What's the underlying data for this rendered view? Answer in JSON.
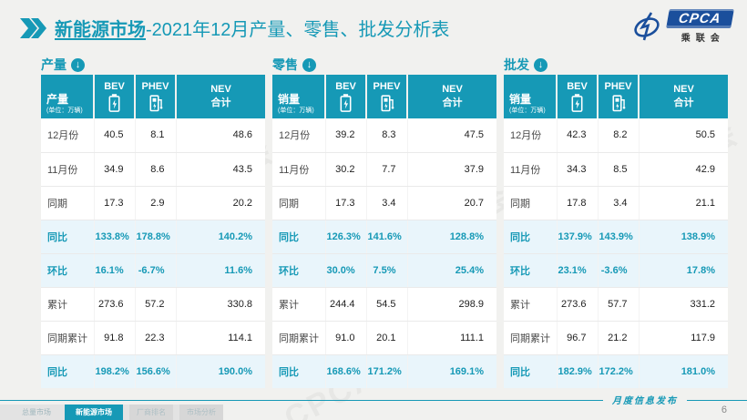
{
  "accent": "#1699B6",
  "page_background": "#F1F1EF",
  "highlight_row_background": "#E9F5FB",
  "title": {
    "highlight": "新能源市场",
    "rest": "-2021年12月产量、零售、批发分析表"
  },
  "logo": {
    "cpca": "CPCA",
    "org": "乘联会",
    "swoosh_color": "#1B4F9C"
  },
  "unit_note": "(单位：万辆)",
  "columns": {
    "bev": "BEV",
    "phev": "PHEV",
    "nev_line1": "NEV",
    "nev_line2": "合计"
  },
  "sections": [
    {
      "title": "产量",
      "arrow": false,
      "label_header": "产量",
      "rows": [
        {
          "label": "12月份",
          "values": [
            "40.5",
            "8.1",
            "48.6"
          ],
          "highlight": false
        },
        {
          "label": "11月份",
          "values": [
            "34.9",
            "8.6",
            "43.5"
          ],
          "highlight": false
        },
        {
          "label": "同期",
          "values": [
            "17.3",
            "2.9",
            "20.2"
          ],
          "highlight": false
        },
        {
          "label": "同比",
          "values": [
            "133.8%",
            "178.8%",
            "140.2%"
          ],
          "highlight": true
        },
        {
          "label": "环比",
          "values": [
            "16.1%",
            "-6.7%",
            "11.6%"
          ],
          "highlight": true
        },
        {
          "label": "累计",
          "values": [
            "273.6",
            "57.2",
            "330.8"
          ],
          "highlight": false
        },
        {
          "label": "同期累计",
          "values": [
            "91.8",
            "22.3",
            "114.1"
          ],
          "highlight": false
        },
        {
          "label": "同比",
          "values": [
            "198.2%",
            "156.6%",
            "190.0%"
          ],
          "highlight": true
        }
      ]
    },
    {
      "title": "零售",
      "arrow": true,
      "label_header": "销量",
      "rows": [
        {
          "label": "12月份",
          "values": [
            "39.2",
            "8.3",
            "47.5"
          ],
          "highlight": false
        },
        {
          "label": "11月份",
          "values": [
            "30.2",
            "7.7",
            "37.9"
          ],
          "highlight": false
        },
        {
          "label": "同期",
          "values": [
            "17.3",
            "3.4",
            "20.7"
          ],
          "highlight": false
        },
        {
          "label": "同比",
          "values": [
            "126.3%",
            "141.6%",
            "128.8%"
          ],
          "highlight": true
        },
        {
          "label": "环比",
          "values": [
            "30.0%",
            "7.5%",
            "25.4%"
          ],
          "highlight": true
        },
        {
          "label": "累计",
          "values": [
            "244.4",
            "54.5",
            "298.9"
          ],
          "highlight": false
        },
        {
          "label": "同期累计",
          "values": [
            "91.0",
            "20.1",
            "111.1"
          ],
          "highlight": false
        },
        {
          "label": "同比",
          "values": [
            "168.6%",
            "171.2%",
            "169.1%"
          ],
          "highlight": true
        }
      ]
    },
    {
      "title": "批发",
      "arrow": true,
      "label_header": "销量",
      "rows": [
        {
          "label": "12月份",
          "values": [
            "42.3",
            "8.2",
            "50.5"
          ],
          "highlight": false
        },
        {
          "label": "11月份",
          "values": [
            "34.3",
            "8.5",
            "42.9"
          ],
          "highlight": false
        },
        {
          "label": "同期",
          "values": [
            "17.8",
            "3.4",
            "21.1"
          ],
          "highlight": false
        },
        {
          "label": "同比",
          "values": [
            "137.9%",
            "143.9%",
            "138.9%"
          ],
          "highlight": true
        },
        {
          "label": "环比",
          "values": [
            "23.1%",
            "-3.6%",
            "17.8%"
          ],
          "highlight": true
        },
        {
          "label": "累计",
          "values": [
            "273.6",
            "57.7",
            "331.2"
          ],
          "highlight": false
        },
        {
          "label": "同期累计",
          "values": [
            "96.7",
            "21.2",
            "117.9"
          ],
          "highlight": false
        },
        {
          "label": "同比",
          "values": [
            "182.9%",
            "172.2%",
            "181.0%"
          ],
          "highlight": true
        }
      ]
    }
  ],
  "watermark": "CPCA 乘联会",
  "footer": {
    "note": "月度信息发布",
    "page": "6",
    "tabs": [
      {
        "label": "总量市场",
        "active": false
      },
      {
        "label": "新能源市场",
        "active": true
      },
      {
        "label": "厂商排名",
        "active": false
      },
      {
        "label": "市场分析",
        "active": false
      }
    ]
  }
}
